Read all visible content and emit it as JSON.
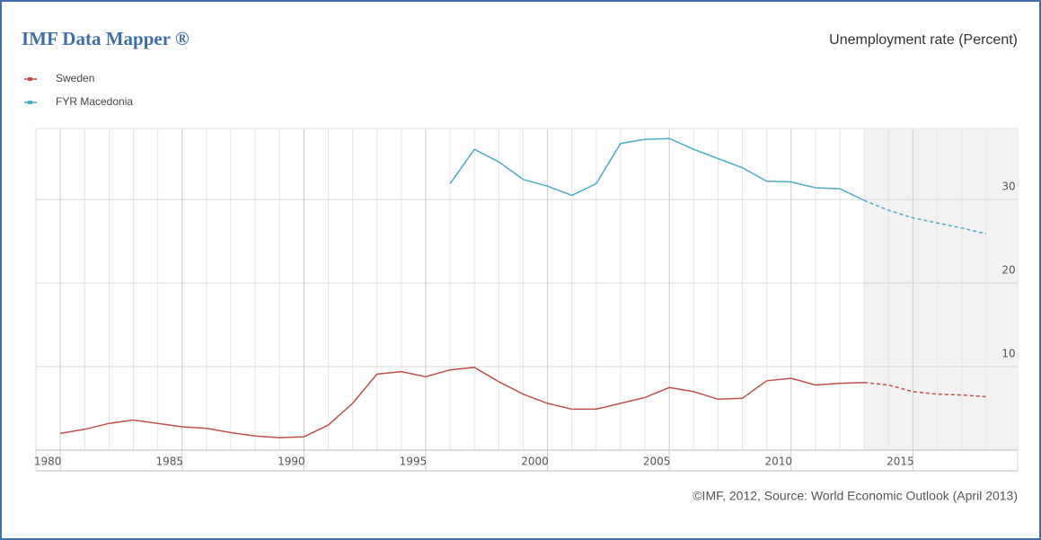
{
  "chart_data": {
    "type": "line",
    "title": "IMF Data Mapper ®",
    "subtitle": "Unemployment rate (Percent)",
    "source": "©IMF, 2012, Source: World Economic Outlook (April 2013)",
    "x": [
      1980,
      1981,
      1982,
      1983,
      1984,
      1985,
      1986,
      1987,
      1988,
      1989,
      1990,
      1991,
      1992,
      1993,
      1994,
      1995,
      1996,
      1997,
      1998,
      1999,
      2000,
      2001,
      2002,
      2003,
      2004,
      2005,
      2006,
      2007,
      2008,
      2009,
      2010,
      2011,
      2012,
      2013,
      2014,
      2015,
      2016,
      2017,
      2018
    ],
    "series": [
      {
        "name": "Sweden",
        "color": "#c0504d",
        "values": [
          2.0,
          2.5,
          3.2,
          3.6,
          3.2,
          2.8,
          2.6,
          2.1,
          1.7,
          1.5,
          1.6,
          3.0,
          5.6,
          9.1,
          9.4,
          8.8,
          9.6,
          9.9,
          8.2,
          6.7,
          5.6,
          4.9,
          4.9,
          5.6,
          6.3,
          7.5,
          7.0,
          6.1,
          6.2,
          8.3,
          8.6,
          7.8,
          8.0,
          8.1,
          7.8,
          7.0,
          6.7,
          6.6,
          6.4
        ]
      },
      {
        "name": "FYR Macedonia",
        "color": "#4bacc6",
        "values": [
          null,
          null,
          null,
          null,
          null,
          null,
          null,
          null,
          null,
          null,
          null,
          null,
          null,
          null,
          null,
          null,
          31.9,
          36.0,
          34.5,
          32.4,
          31.6,
          30.5,
          31.9,
          36.7,
          37.2,
          37.3,
          36.0,
          34.9,
          33.8,
          32.2,
          32.1,
          31.4,
          31.3,
          29.9,
          28.7,
          27.8,
          27.2,
          26.6,
          25.9
        ]
      }
    ],
    "projection_from": 2013,
    "xlim": [
      1979,
      2019.3
    ],
    "xticks": [
      1980,
      1985,
      1990,
      1995,
      2000,
      2005,
      2010,
      2015
    ],
    "ylim": [
      0,
      38.5
    ],
    "yticks": [
      10,
      20,
      30
    ],
    "grid": true
  }
}
